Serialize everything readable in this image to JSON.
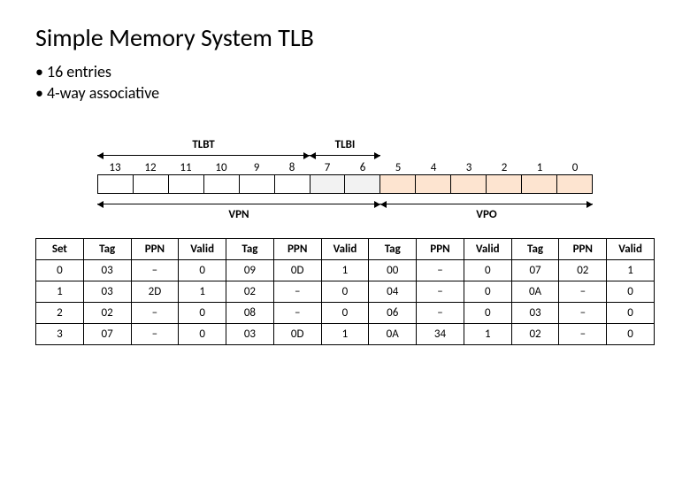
{
  "title": "Simple Memory System TLB",
  "bullets": [
    "16 entries",
    "4-way associative"
  ],
  "bit_diagram": {
    "n_bits": 14,
    "labels": [
      "13",
      "12",
      "11",
      "10",
      "9",
      "8",
      "7",
      "6",
      "5",
      "4",
      "3",
      "2",
      "1",
      "0"
    ],
    "colors": {
      "tlbt": "#ffffff",
      "tlbi": "#f2f2f2",
      "vpo": "#fde4d0"
    },
    "regions": {
      "tlbt": {
        "label": "TLBT",
        "start": 0,
        "end": 5
      },
      "tlbi": {
        "label": "TLBI",
        "start": 6,
        "end": 7
      },
      "vpn": {
        "label": "VPN",
        "start": 0,
        "end": 7
      },
      "vpo": {
        "label": "VPO",
        "start": 8,
        "end": 13
      }
    }
  },
  "tlb_table": {
    "ways": 4,
    "headers_first": "Set",
    "headers_group": [
      "Tag",
      "PPN",
      "Valid"
    ],
    "rows": [
      {
        "set": "0",
        "ways": [
          {
            "tag": "03",
            "ppn": "–",
            "valid": "0"
          },
          {
            "tag": "09",
            "ppn": "0D",
            "valid": "1"
          },
          {
            "tag": "00",
            "ppn": "–",
            "valid": "0"
          },
          {
            "tag": "07",
            "ppn": "02",
            "valid": "1"
          }
        ]
      },
      {
        "set": "1",
        "ways": [
          {
            "tag": "03",
            "ppn": "2D",
            "valid": "1"
          },
          {
            "tag": "02",
            "ppn": "–",
            "valid": "0"
          },
          {
            "tag": "04",
            "ppn": "–",
            "valid": "0"
          },
          {
            "tag": "0A",
            "ppn": "–",
            "valid": "0"
          }
        ]
      },
      {
        "set": "2",
        "ways": [
          {
            "tag": "02",
            "ppn": "–",
            "valid": "0"
          },
          {
            "tag": "08",
            "ppn": "–",
            "valid": "0"
          },
          {
            "tag": "06",
            "ppn": "–",
            "valid": "0"
          },
          {
            "tag": "03",
            "ppn": "–",
            "valid": "0"
          }
        ]
      },
      {
        "set": "3",
        "ways": [
          {
            "tag": "07",
            "ppn": "–",
            "valid": "0"
          },
          {
            "tag": "03",
            "ppn": "0D",
            "valid": "1"
          },
          {
            "tag": "0A",
            "ppn": "34",
            "valid": "1"
          },
          {
            "tag": "02",
            "ppn": "–",
            "valid": "0"
          }
        ]
      }
    ]
  }
}
